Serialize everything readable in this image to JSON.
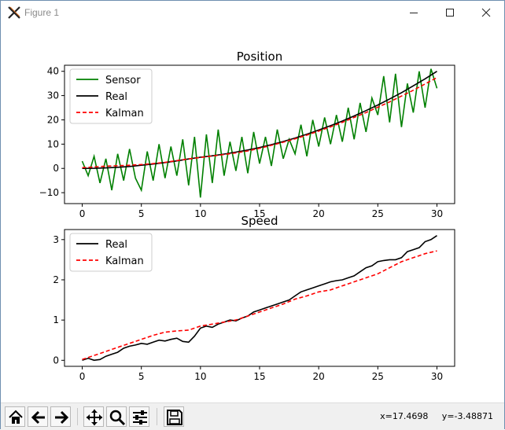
{
  "window": {
    "title": "Figure 1",
    "icons": {
      "app": "matplotlib-x-icon",
      "minimize": "minimize-icon",
      "maximize": "maximize-icon",
      "close": "close-icon"
    }
  },
  "toolbar": {
    "buttons": [
      {
        "name": "home-button",
        "icon": "home-icon"
      },
      {
        "name": "back-button",
        "icon": "arrow-left-icon"
      },
      {
        "name": "forward-button",
        "icon": "arrow-right-icon"
      },
      {
        "name": "pan-button",
        "icon": "move-arrows-icon"
      },
      {
        "name": "zoom-button",
        "icon": "magnifier-icon"
      },
      {
        "name": "configure-subplots-button",
        "icon": "sliders-icon"
      },
      {
        "name": "save-button",
        "icon": "floppy-disk-icon"
      }
    ],
    "coords_text": "x=17.4698     y=-3.48871"
  },
  "chart_data": [
    {
      "type": "line",
      "title": "Position",
      "xlabel": "",
      "ylabel": "",
      "xlim": [
        -1.5,
        31.5
      ],
      "ylim": [
        -14.5,
        42.5
      ],
      "xticks": [
        0,
        5,
        10,
        15,
        20,
        25,
        30
      ],
      "yticks": [
        -10,
        0,
        10,
        20,
        30,
        40
      ],
      "grid": false,
      "legend": "upper-left",
      "series": [
        {
          "name": "Sensor",
          "color": "#008000",
          "style": "solid",
          "x": [
            0,
            0.5,
            1,
            1.5,
            2,
            2.5,
            3,
            3.5,
            4,
            4.5,
            5,
            5.5,
            6,
            6.5,
            7,
            7.5,
            8,
            8.5,
            9,
            9.5,
            10,
            10.5,
            11,
            11.5,
            12,
            12.5,
            13,
            13.5,
            14,
            14.5,
            15,
            15.5,
            16,
            16.5,
            17,
            17.5,
            18,
            18.5,
            19,
            19.5,
            20,
            20.5,
            21,
            21.5,
            22,
            22.5,
            23,
            23.5,
            24,
            24.5,
            25,
            25.5,
            26,
            26.5,
            27,
            27.5,
            28,
            28.5,
            29,
            29.5,
            30
          ],
          "y": [
            3,
            -3,
            5,
            -6,
            4,
            -9,
            6,
            -5,
            8,
            -4,
            -9,
            7,
            -5,
            10,
            -4,
            9,
            -3,
            12,
            -7,
            13,
            -12,
            14,
            -6,
            16,
            -3,
            11,
            -1,
            13,
            -2,
            15,
            2,
            13,
            1,
            16,
            4,
            12,
            6,
            18,
            5,
            20,
            9,
            21,
            10,
            22,
            11,
            25,
            12,
            27,
            15,
            29,
            22,
            38,
            19,
            39,
            17,
            35,
            23,
            40,
            25,
            41,
            33
          ]
        },
        {
          "name": "Real",
          "color": "#000000",
          "style": "solid",
          "x": [
            0,
            1,
            2,
            3,
            4,
            5,
            6,
            7,
            8,
            9,
            10,
            11,
            12,
            13,
            14,
            15,
            16,
            17,
            18,
            19,
            20,
            21,
            22,
            23,
            24,
            25,
            26,
            27,
            28,
            29,
            30
          ],
          "y": [
            0,
            0.05,
            0.2,
            0.45,
            0.8,
            1.3,
            1.8,
            2.4,
            3.1,
            3.9,
            4.6,
            5.2,
            5.9,
            6.7,
            7.6,
            8.6,
            9.8,
            11.1,
            12.5,
            14.1,
            15.8,
            17.6,
            19.5,
            21.6,
            23.8,
            26.1,
            28.6,
            31.2,
            34.0,
            36.9,
            40
          ]
        },
        {
          "name": "Kalman",
          "color": "#ff0000",
          "style": "dashed",
          "x": [
            0,
            1,
            2,
            3,
            4,
            5,
            6,
            7,
            8,
            9,
            10,
            11,
            12,
            13,
            14,
            15,
            16,
            17,
            18,
            19,
            20,
            21,
            22,
            23,
            24,
            25,
            26,
            27,
            28,
            29,
            30
          ],
          "y": [
            0.3,
            0.6,
            0.9,
            1.1,
            1.3,
            1.6,
            2.0,
            2.5,
            3.2,
            3.9,
            4.5,
            5.1,
            5.7,
            6.4,
            7.2,
            8.3,
            9.5,
            10.8,
            12.2,
            13.7,
            15.4,
            17.1,
            19.0,
            21.0,
            23.0,
            25.2,
            27.4,
            29.8,
            32.2,
            34.8,
            37.4
          ]
        }
      ]
    },
    {
      "type": "line",
      "title": "Speed",
      "xlabel": "",
      "ylabel": "",
      "xlim": [
        -1.5,
        31.5
      ],
      "ylim": [
        -0.15,
        3.25
      ],
      "xticks": [
        0,
        5,
        10,
        15,
        20,
        25,
        30
      ],
      "yticks": [
        0,
        1,
        2,
        3
      ],
      "grid": false,
      "legend": "upper-left",
      "series": [
        {
          "name": "Real",
          "color": "#000000",
          "style": "solid",
          "x": [
            0,
            0.5,
            1,
            1.5,
            2,
            2.5,
            3,
            3.5,
            4,
            4.5,
            5,
            5.5,
            6,
            6.5,
            7,
            7.5,
            8,
            8.5,
            9,
            9.5,
            10,
            10.5,
            11,
            11.5,
            12,
            12.5,
            13,
            13.5,
            14,
            14.5,
            15,
            15.5,
            16,
            16.5,
            17,
            17.5,
            18,
            18.5,
            19,
            19.5,
            20,
            20.5,
            21,
            21.5,
            22,
            22.5,
            23,
            23.5,
            24,
            24.5,
            25,
            25.5,
            26,
            26.5,
            27,
            27.5,
            28,
            28.5,
            29,
            29.5,
            30
          ],
          "y": [
            0,
            0.05,
            0,
            0.02,
            0.1,
            0.15,
            0.2,
            0.3,
            0.35,
            0.38,
            0.42,
            0.4,
            0.45,
            0.5,
            0.48,
            0.52,
            0.55,
            0.47,
            0.45,
            0.6,
            0.8,
            0.85,
            0.82,
            0.9,
            0.95,
            1.0,
            0.98,
            1.05,
            1.1,
            1.2,
            1.25,
            1.3,
            1.35,
            1.4,
            1.45,
            1.5,
            1.6,
            1.7,
            1.75,
            1.8,
            1.85,
            1.9,
            1.95,
            1.98,
            2.0,
            2.05,
            2.1,
            2.2,
            2.3,
            2.35,
            2.45,
            2.48,
            2.5,
            2.5,
            2.55,
            2.7,
            2.75,
            2.8,
            2.95,
            3.0,
            3.1
          ]
        },
        {
          "name": "Kalman",
          "color": "#ff0000",
          "style": "dashed",
          "x": [
            0,
            1,
            2,
            3,
            4,
            5,
            6,
            7,
            8,
            9,
            10,
            11,
            12,
            13,
            14,
            15,
            16,
            17,
            18,
            19,
            20,
            21,
            22,
            23,
            24,
            25,
            26,
            27,
            28,
            29,
            30
          ],
          "y": [
            0.02,
            0.12,
            0.22,
            0.32,
            0.42,
            0.52,
            0.62,
            0.7,
            0.73,
            0.75,
            0.85,
            0.9,
            0.95,
            1.0,
            1.1,
            1.2,
            1.3,
            1.4,
            1.52,
            1.6,
            1.7,
            1.75,
            1.85,
            1.95,
            2.05,
            2.15,
            2.3,
            2.45,
            2.55,
            2.65,
            2.72
          ]
        }
      ]
    }
  ]
}
